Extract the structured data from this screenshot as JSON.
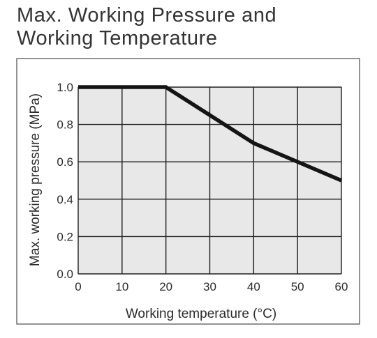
{
  "header": {
    "title_line1": "Max. Working Pressure and",
    "title_line2": "Working Temperature"
  },
  "chart_data": {
    "type": "line",
    "xlabel": "Working temperature (°C)",
    "ylabel": "Max. working pressure (MPa)",
    "xlim": [
      0,
      60
    ],
    "ylim": [
      0,
      1.0
    ],
    "x_ticks": [
      "0",
      "10",
      "20",
      "30",
      "40",
      "50",
      "60"
    ],
    "y_ticks": [
      "0.0",
      "0.2",
      "0.4",
      "0.6",
      "0.8",
      "1.0"
    ],
    "grid": true,
    "colors": {
      "plot_bg": "#e8e8e8",
      "grid": "#1f1f1f",
      "line": "#141414",
      "frame": "#4a4a4a"
    },
    "series": [
      {
        "x": [
          0,
          20,
          40,
          60
        ],
        "y": [
          1.0,
          1.0,
          0.7,
          0.5
        ]
      }
    ]
  }
}
